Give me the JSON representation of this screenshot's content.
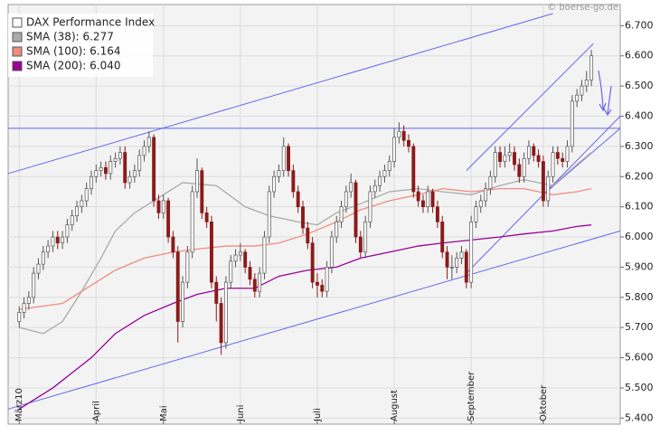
{
  "chart_data": {
    "type": "candlestick",
    "watermark": "© boerse-go.de",
    "xlim": [
      -2.3,
      125
    ],
    "xticks": [
      {
        "value": 0,
        "label": "März10"
      },
      {
        "value": 16,
        "label": "April"
      },
      {
        "value": 30,
        "label": "Mai"
      },
      {
        "value": 46,
        "label": "Juni"
      },
      {
        "value": 62,
        "label": "Juli"
      },
      {
        "value": 78,
        "label": "August"
      },
      {
        "value": 94,
        "label": "September"
      },
      {
        "value": 109,
        "label": "Oktober"
      }
    ],
    "ylim": [
      5.38,
      6.77
    ],
    "yticks": [
      {
        "value": 5.4,
        "label": "5.400"
      },
      {
        "value": 5.5,
        "label": "5.500"
      },
      {
        "value": 5.6,
        "label": "5.600"
      },
      {
        "value": 5.7,
        "label": "5.700"
      },
      {
        "value": 5.8,
        "label": "5.800"
      },
      {
        "value": 5.9,
        "label": "5.900"
      },
      {
        "value": 6.0,
        "label": "6.000"
      },
      {
        "value": 6.1,
        "label": "6.100"
      },
      {
        "value": 6.2,
        "label": "6.200"
      },
      {
        "value": 6.3,
        "label": "6.300"
      },
      {
        "value": 6.4,
        "label": "6.400"
      },
      {
        "value": 6.5,
        "label": "6.500"
      },
      {
        "value": 6.6,
        "label": "6.600"
      },
      {
        "value": 6.7,
        "label": "6.700"
      }
    ],
    "grid": true,
    "legend": "top-left",
    "series": [
      {
        "name": "DAX Performance Index",
        "type": "candlestick",
        "color": "#ffffff",
        "down_color": "#8b1a1a",
        "ohlc": [
          [
            5.72,
            5.77,
            5.7,
            5.75
          ],
          [
            5.75,
            5.8,
            5.73,
            5.78
          ],
          [
            5.78,
            5.82,
            5.76,
            5.8
          ],
          [
            5.8,
            5.9,
            5.78,
            5.88
          ],
          [
            5.88,
            5.93,
            5.86,
            5.91
          ],
          [
            5.91,
            5.97,
            5.89,
            5.95
          ],
          [
            5.95,
            5.99,
            5.93,
            5.97
          ],
          [
            5.97,
            6.02,
            5.95,
            6.0
          ],
          [
            6.0,
            6.02,
            5.96,
            5.98
          ],
          [
            5.98,
            6.02,
            5.96,
            6.0
          ],
          [
            6.0,
            6.06,
            5.98,
            6.04
          ],
          [
            6.04,
            6.09,
            6.02,
            6.07
          ],
          [
            6.07,
            6.12,
            6.05,
            6.1
          ],
          [
            6.1,
            6.14,
            6.08,
            6.12
          ],
          [
            6.12,
            6.18,
            6.1,
            6.16
          ],
          [
            6.16,
            6.22,
            6.14,
            6.2
          ],
          [
            6.2,
            6.24,
            6.18,
            6.22
          ],
          [
            6.22,
            6.25,
            6.2,
            6.23
          ],
          [
            6.23,
            6.25,
            6.19,
            6.21
          ],
          [
            6.21,
            6.27,
            6.19,
            6.25
          ],
          [
            6.25,
            6.28,
            6.23,
            6.26
          ],
          [
            6.26,
            6.3,
            6.24,
            6.28
          ],
          [
            6.28,
            6.3,
            6.16,
            6.18
          ],
          [
            6.18,
            6.22,
            6.16,
            6.2
          ],
          [
            6.2,
            6.24,
            6.18,
            6.22
          ],
          [
            6.22,
            6.29,
            6.2,
            6.27
          ],
          [
            6.27,
            6.32,
            6.25,
            6.3
          ],
          [
            6.3,
            6.35,
            6.28,
            6.33
          ],
          [
            6.33,
            6.34,
            6.1,
            6.12
          ],
          [
            6.12,
            6.14,
            6.06,
            6.08
          ],
          [
            6.08,
            6.14,
            6.06,
            6.12
          ],
          [
            6.12,
            6.13,
            5.98,
            6.0
          ],
          [
            6.0,
            6.02,
            5.93,
            5.95
          ],
          [
            5.95,
            5.97,
            5.65,
            5.72
          ],
          [
            5.72,
            5.87,
            5.7,
            5.85
          ],
          [
            5.85,
            5.97,
            5.83,
            5.95
          ],
          [
            5.95,
            6.17,
            5.93,
            6.15
          ],
          [
            6.15,
            6.26,
            6.13,
            6.22
          ],
          [
            6.22,
            6.23,
            6.06,
            6.08
          ],
          [
            6.08,
            6.1,
            6.03,
            6.05
          ],
          [
            6.05,
            6.07,
            5.83,
            5.85
          ],
          [
            5.85,
            5.87,
            5.72,
            5.78
          ],
          [
            5.78,
            5.8,
            5.61,
            5.65
          ],
          [
            5.65,
            5.87,
            5.63,
            5.85
          ],
          [
            5.85,
            5.94,
            5.83,
            5.92
          ],
          [
            5.92,
            5.96,
            5.9,
            5.94
          ],
          [
            5.94,
            5.98,
            5.92,
            5.95
          ],
          [
            5.95,
            5.96,
            5.88,
            5.9
          ],
          [
            5.9,
            5.92,
            5.84,
            5.86
          ],
          [
            5.86,
            5.88,
            5.8,
            5.82
          ],
          [
            5.82,
            5.9,
            5.8,
            5.88
          ],
          [
            5.88,
            6.02,
            5.86,
            6.0
          ],
          [
            6.0,
            6.17,
            5.98,
            6.15
          ],
          [
            6.15,
            6.22,
            6.13,
            6.2
          ],
          [
            6.2,
            6.24,
            6.18,
            6.22
          ],
          [
            6.22,
            6.33,
            6.2,
            6.3
          ],
          [
            6.3,
            6.31,
            6.2,
            6.22
          ],
          [
            6.22,
            6.24,
            6.13,
            6.15
          ],
          [
            6.15,
            6.17,
            6.08,
            6.1
          ],
          [
            6.1,
            6.12,
            6.01,
            6.03
          ],
          [
            6.03,
            6.05,
            5.96,
            5.98
          ],
          [
            5.98,
            6.0,
            5.83,
            5.85
          ],
          [
            5.85,
            5.88,
            5.8,
            5.84
          ],
          [
            5.84,
            5.86,
            5.8,
            5.82
          ],
          [
            5.82,
            5.92,
            5.8,
            5.9
          ],
          [
            5.9,
            6.02,
            5.88,
            6.0
          ],
          [
            6.0,
            6.07,
            5.98,
            6.05
          ],
          [
            6.05,
            6.12,
            6.03,
            6.1
          ],
          [
            6.1,
            6.17,
            6.08,
            6.15
          ],
          [
            6.15,
            6.21,
            6.13,
            6.18
          ],
          [
            6.18,
            6.19,
            5.98,
            6.0
          ],
          [
            6.0,
            6.02,
            5.93,
            5.95
          ],
          [
            5.95,
            6.07,
            5.93,
            6.05
          ],
          [
            6.05,
            6.17,
            6.03,
            6.15
          ],
          [
            6.15,
            6.19,
            6.13,
            6.17
          ],
          [
            6.17,
            6.22,
            6.15,
            6.2
          ],
          [
            6.2,
            6.24,
            6.18,
            6.22
          ],
          [
            6.22,
            6.27,
            6.2,
            6.25
          ],
          [
            6.25,
            6.36,
            6.23,
            6.33
          ],
          [
            6.33,
            6.38,
            6.31,
            6.35
          ],
          [
            6.35,
            6.37,
            6.3,
            6.32
          ],
          [
            6.32,
            6.34,
            6.28,
            6.3
          ],
          [
            6.3,
            6.31,
            6.13,
            6.15
          ],
          [
            6.15,
            6.17,
            6.1,
            6.12
          ],
          [
            6.12,
            6.14,
            6.08,
            6.1
          ],
          [
            6.1,
            6.17,
            6.08,
            6.15
          ],
          [
            6.15,
            6.16,
            6.08,
            6.1
          ],
          [
            6.1,
            6.12,
            6.03,
            6.05
          ],
          [
            6.05,
            6.07,
            5.93,
            5.95
          ],
          [
            5.95,
            5.97,
            5.86,
            5.9
          ],
          [
            5.9,
            5.94,
            5.86,
            5.9
          ],
          [
            5.9,
            5.95,
            5.88,
            5.93
          ],
          [
            5.93,
            5.97,
            5.91,
            5.95
          ],
          [
            5.95,
            5.96,
            5.83,
            5.85
          ],
          [
            5.85,
            6.07,
            5.83,
            6.05
          ],
          [
            6.05,
            6.12,
            6.03,
            6.1
          ],
          [
            6.1,
            6.14,
            6.08,
            6.12
          ],
          [
            6.12,
            6.18,
            6.1,
            6.16
          ],
          [
            6.16,
            6.22,
            6.14,
            6.2
          ],
          [
            6.2,
            6.3,
            6.18,
            6.28
          ],
          [
            6.28,
            6.3,
            6.23,
            6.25
          ],
          [
            6.25,
            6.3,
            6.23,
            6.27
          ],
          [
            6.27,
            6.31,
            6.25,
            6.28
          ],
          [
            6.28,
            6.3,
            6.22,
            6.24
          ],
          [
            6.24,
            6.26,
            6.18,
            6.2
          ],
          [
            6.2,
            6.28,
            6.18,
            6.26
          ],
          [
            6.26,
            6.32,
            6.24,
            6.3
          ],
          [
            6.3,
            6.31,
            6.25,
            6.27
          ],
          [
            6.27,
            6.29,
            6.23,
            6.25
          ],
          [
            6.25,
            6.27,
            6.1,
            6.12
          ],
          [
            6.12,
            6.22,
            6.1,
            6.2
          ],
          [
            6.2,
            6.3,
            6.18,
            6.28
          ],
          [
            6.28,
            6.3,
            6.24,
            6.26
          ],
          [
            6.26,
            6.28,
            6.23,
            6.25
          ],
          [
            6.25,
            6.32,
            6.23,
            6.3
          ],
          [
            6.3,
            6.47,
            6.28,
            6.45
          ],
          [
            6.45,
            6.49,
            6.43,
            6.47
          ],
          [
            6.47,
            6.52,
            6.45,
            6.5
          ],
          [
            6.5,
            6.55,
            6.48,
            6.52
          ],
          [
            6.52,
            6.62,
            6.5,
            6.6
          ]
        ]
      },
      {
        "name": "SMA (38): 6.277",
        "type": "line",
        "color": "#aaaaaa",
        "x": [
          0,
          5,
          9,
          13,
          17,
          20,
          24,
          28,
          34,
          41,
          47,
          52,
          58,
          62,
          66,
          71,
          77,
          83,
          88,
          94,
          100,
          105,
          111,
          116,
          119
        ],
        "values": [
          5.7,
          5.68,
          5.72,
          5.82,
          5.93,
          6.02,
          6.08,
          6.12,
          6.18,
          6.17,
          6.1,
          6.07,
          6.05,
          6.04,
          6.08,
          6.11,
          6.15,
          6.16,
          6.15,
          6.14,
          6.17,
          6.19,
          6.17,
          6.24,
          6.28
        ]
      },
      {
        "name": "SMA (100): 6.164",
        "type": "line",
        "color": "#f08c80",
        "x": [
          0,
          9,
          15,
          20,
          26,
          32,
          37,
          43,
          49,
          54,
          60,
          66,
          71,
          77,
          83,
          88,
          94,
          100,
          105,
          111,
          116,
          119
        ],
        "values": [
          5.76,
          5.78,
          5.84,
          5.89,
          5.93,
          5.95,
          5.96,
          5.97,
          5.97,
          5.98,
          6.01,
          6.05,
          6.09,
          6.12,
          6.14,
          6.16,
          6.15,
          6.16,
          6.16,
          6.14,
          6.15,
          6.16
        ]
      },
      {
        "name": "SMA (200): 6.040",
        "type": "line",
        "color": "#990099",
        "x": [
          0,
          7,
          15,
          20,
          26,
          32,
          37,
          43,
          49,
          54,
          60,
          66,
          71,
          77,
          83,
          88,
          94,
          100,
          105,
          111,
          116,
          119
        ],
        "values": [
          5.43,
          5.5,
          5.6,
          5.68,
          5.74,
          5.78,
          5.81,
          5.83,
          5.83,
          5.87,
          5.89,
          5.9,
          5.93,
          5.95,
          5.97,
          5.98,
          5.99,
          6.0,
          6.01,
          6.02,
          6.035,
          6.04
        ]
      }
    ],
    "trend_lines": [
      {
        "color": "#6666ee",
        "x": [
          -2.3,
          111
        ],
        "values": [
          6.21,
          6.74
        ]
      },
      {
        "color": "#6666ee",
        "x": [
          -2.3,
          125
        ],
        "values": [
          5.43,
          6.02
        ]
      },
      {
        "color": "#6666ee",
        "x": [
          -2.3,
          125
        ],
        "values": [
          6.36,
          6.36
        ]
      },
      {
        "color": "#6666ee",
        "x": [
          93,
          125
        ],
        "values": [
          5.88,
          6.4
        ]
      },
      {
        "color": "#6666ee",
        "x": [
          93,
          119.4
        ],
        "values": [
          6.22,
          6.64
        ]
      },
      {
        "color": "#6666ee",
        "x": [
          109,
          125
        ],
        "values": [
          6.14,
          6.36
        ]
      }
    ]
  }
}
